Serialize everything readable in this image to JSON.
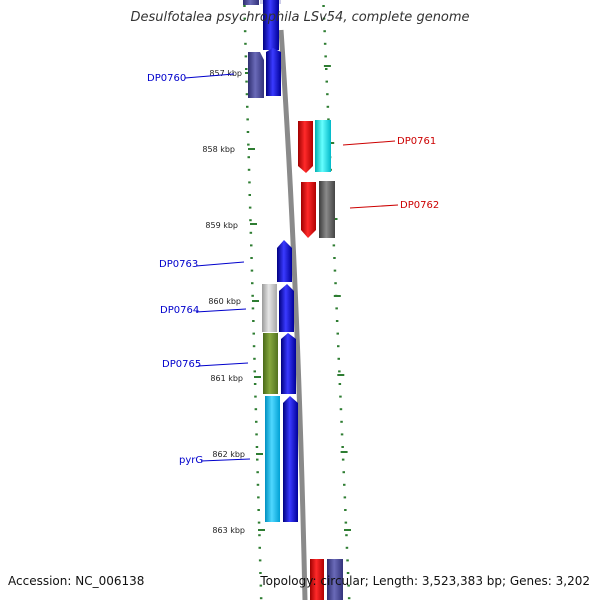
{
  "title": "Desulfotalea psychrophila LSv54, complete genome",
  "footer": {
    "accession": "Accession: NC_006138",
    "summary": "Topology: circular; Length: 3,523,383 bp; Genes: 3,202"
  },
  "colors": {
    "background": "#ffffff",
    "backbone": "#888888",
    "tick": "#2e7d32",
    "label_forward": "#0000cc",
    "label_reverse": "#cc0000"
  },
  "scale": {
    "ticks": [
      "857 kbp",
      "858 kbp",
      "859 kbp",
      "860 kbp",
      "861 kbp",
      "862 kbp",
      "863 kbp"
    ]
  },
  "gene_labels": {
    "DP0760": "DP0760",
    "DP0761": "DP0761",
    "DP0762": "DP0762",
    "DP0763": "DP0763",
    "DP0764": "DP0764",
    "DP0765": "DP0765",
    "pyrG": "pyrG"
  }
}
